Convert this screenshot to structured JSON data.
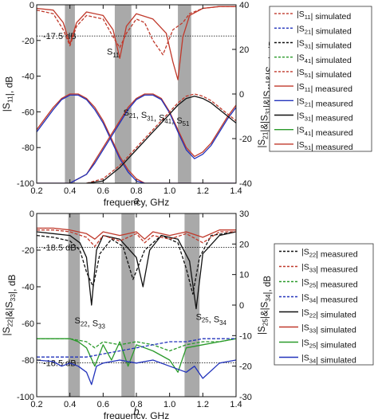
{
  "chart_data": [
    {
      "panel_label": "a",
      "type": "line",
      "xlabel": "frequency, GHz",
      "ylabel_left": "|S11|, dB",
      "ylabel_right": "|S21|&|S31|&|S41|&|S51|, dB",
      "xlim": [
        0.2,
        1.4
      ],
      "ylim_left": [
        -100,
        0
      ],
      "ylim_right": [
        -40,
        40
      ],
      "xticks": [
        "0.2",
        "0.4",
        "0.6",
        "0.8",
        "1.0",
        "1.2",
        "1.4"
      ],
      "yticks_left": [
        "-100",
        "-80",
        "-60",
        "-40",
        "-20",
        "0"
      ],
      "yticks_right": [
        "-40",
        "-20",
        "0",
        "20",
        "40"
      ],
      "shaded_bands": [
        [
          0.37,
          0.43
        ],
        [
          0.67,
          0.77
        ],
        [
          1.05,
          1.13
        ]
      ],
      "reference_lines": [
        {
          "axis": "left",
          "y": -17.5,
          "label": "-17.5 dB"
        }
      ],
      "annotations": [
        {
          "text": "S11",
          "x": 0.66,
          "y": -28
        },
        {
          "text": "S21, S31, S41, S51",
          "x": 0.92,
          "y": -62
        }
      ],
      "legend": {
        "placement": "right",
        "entries": [
          {
            "label": "|S11| simulated",
            "color": "#c0392b",
            "style": "dashed"
          },
          {
            "label": "|S21| simulated",
            "color": "#2233bb",
            "style": "dashed"
          },
          {
            "label": "|S31| simulated",
            "color": "#111111",
            "style": "dashed"
          },
          {
            "label": "|S41| simulated",
            "color": "#2a9a2a",
            "style": "dashed"
          },
          {
            "label": "|S51| simulated",
            "color": "#c0392b",
            "style": "dashed"
          },
          {
            "label": "|S11| measured",
            "color": "#c0392b",
            "style": "solid"
          },
          {
            "label": "|S21| measured",
            "color": "#2233bb",
            "style": "solid"
          },
          {
            "label": "|S31| measured",
            "color": "#111111",
            "style": "solid"
          },
          {
            "label": "|S41| measured",
            "color": "#2a9a2a",
            "style": "solid"
          },
          {
            "label": "|S51| measured",
            "color": "#c0392b",
            "style": "solid"
          }
        ]
      },
      "series": [
        {
          "axis": "left",
          "color": "#c0392b",
          "style": "solid",
          "x": [
            0.2,
            0.3,
            0.36,
            0.4,
            0.44,
            0.5,
            0.6,
            0.66,
            0.7,
            0.74,
            0.8,
            0.9,
            0.98,
            1.02,
            1.05,
            1.08,
            1.12,
            1.2,
            1.3,
            1.4
          ],
          "y": [
            -2,
            -3,
            -10,
            -22,
            -10,
            -4,
            -6,
            -14,
            -30,
            -12,
            -5,
            -8,
            -16,
            -32,
            -42,
            -18,
            -6,
            -2,
            -1,
            -1
          ]
        },
        {
          "axis": "left",
          "color": "#c0392b",
          "style": "dashed",
          "x": [
            0.2,
            0.3,
            0.36,
            0.4,
            0.44,
            0.5,
            0.6,
            0.66,
            0.7,
            0.74,
            0.8,
            0.85,
            0.9,
            0.96,
            1.02,
            1.08,
            1.12,
            1.2,
            1.3,
            1.4
          ],
          "y": [
            -3,
            -5,
            -14,
            -23,
            -12,
            -6,
            -8,
            -18,
            -24,
            -16,
            -8,
            -10,
            -20,
            -28,
            -14,
            -10,
            -5,
            -2,
            -1,
            -1
          ]
        },
        {
          "axis": "right",
          "color": "#c0392b",
          "style": "solid",
          "x": [
            0.2,
            0.25,
            0.3,
            0.35,
            0.4,
            0.45,
            0.5,
            0.55,
            0.6,
            0.65,
            0.7,
            0.75,
            0.8,
            0.85,
            0.9,
            0.95,
            1.0,
            1.05,
            1.1,
            1.15,
            1.2,
            1.25,
            1.3,
            1.35,
            1.4
          ],
          "y": [
            -16,
            -11,
            -6,
            -2,
            0,
            0,
            -2,
            -6,
            -12,
            -20,
            -28,
            -34,
            -38,
            -40,
            -40,
            -40,
            -40,
            -40,
            -40,
            -40,
            -40,
            -40,
            -40,
            -40,
            -40
          ]
        },
        {
          "axis": "right",
          "color": "#2233bb",
          "style": "solid",
          "x": [
            0.2,
            0.25,
            0.3,
            0.35,
            0.4,
            0.45,
            0.5,
            0.55,
            0.6,
            0.65,
            0.7,
            0.75,
            0.8,
            0.85,
            0.9,
            0.95,
            1.0,
            1.05,
            1.1,
            1.15,
            1.2,
            1.25,
            1.3,
            1.35,
            1.4
          ],
          "y": [
            -17,
            -12,
            -7,
            -2.5,
            -0.5,
            -0.5,
            -2.5,
            -7,
            -13,
            -21,
            -29,
            -35,
            -39,
            -40,
            -40,
            -40,
            -40,
            -40,
            -40,
            -40,
            -40,
            -40,
            -40,
            -40,
            -40
          ]
        },
        {
          "axis": "right",
          "color": "#c0392b",
          "style": "solid",
          "x": [
            0.2,
            0.3,
            0.4,
            0.5,
            0.55,
            0.6,
            0.65,
            0.7,
            0.75,
            0.8,
            0.85,
            0.9,
            0.95,
            1.0,
            1.05,
            1.1,
            1.15,
            1.2,
            1.25,
            1.3,
            1.35,
            1.4
          ],
          "y": [
            -40,
            -40,
            -40,
            -36,
            -30,
            -24,
            -18,
            -12,
            -6,
            -2,
            0,
            0,
            -2,
            -8,
            -16,
            -24,
            -28,
            -26,
            -22,
            -16,
            -10,
            -5
          ]
        },
        {
          "axis": "right",
          "color": "#2233bb",
          "style": "solid",
          "x": [
            0.2,
            0.3,
            0.4,
            0.5,
            0.55,
            0.6,
            0.65,
            0.7,
            0.75,
            0.8,
            0.85,
            0.9,
            0.95,
            1.0,
            1.05,
            1.1,
            1.15,
            1.2,
            1.25,
            1.3,
            1.35,
            1.4
          ],
          "y": [
            -40,
            -40,
            -40,
            -36,
            -31,
            -25,
            -19,
            -13,
            -7,
            -2.5,
            -0.5,
            -0.5,
            -2.5,
            -8.5,
            -17,
            -25,
            -29,
            -27,
            -23,
            -17,
            -11,
            -6
          ]
        },
        {
          "axis": "right",
          "color": "#c0392b",
          "style": "dashed",
          "x": [
            0.5,
            0.6,
            0.7,
            0.8,
            0.85,
            0.9,
            0.95,
            1.0,
            1.05,
            1.1,
            1.15,
            1.2,
            1.25,
            1.3,
            1.35,
            1.4
          ],
          "y": [
            -40,
            -38,
            -32,
            -24,
            -20,
            -16,
            -12,
            -8,
            -4,
            -1,
            0,
            -1,
            -3,
            -6,
            -9,
            -12
          ]
        },
        {
          "axis": "right",
          "color": "#111111",
          "style": "solid",
          "x": [
            0.5,
            0.6,
            0.7,
            0.8,
            0.85,
            0.9,
            0.95,
            1.0,
            1.05,
            1.1,
            1.15,
            1.2,
            1.25,
            1.3,
            1.35,
            1.4
          ],
          "y": [
            -40,
            -39,
            -33,
            -25,
            -21,
            -17,
            -13,
            -9,
            -5,
            -2,
            -1,
            -2,
            -4,
            -7,
            -10,
            -13
          ]
        }
      ]
    },
    {
      "panel_label": "b",
      "type": "line",
      "xlabel": "frequency, GHz",
      "ylabel_left": "|S22|&|S33|, dB",
      "ylabel_right": "|S25|&|S34|, dB",
      "xlim": [
        0.2,
        1.4
      ],
      "ylim_left": [
        -100,
        0
      ],
      "ylim_right": [
        -30,
        30
      ],
      "xticks": [
        "0.2",
        "0.4",
        "0.6",
        "0.8",
        "1.0",
        "1.2",
        "1.4"
      ],
      "yticks_left": [
        "-100",
        "-80",
        "-60",
        "-40",
        "-20",
        "0"
      ],
      "yticks_right": [
        "-30",
        "-20",
        "-10",
        "0",
        "10",
        "20",
        "30"
      ],
      "shaded_bands": [
        [
          0.39,
          0.46
        ],
        [
          0.71,
          0.79
        ],
        [
          1.09,
          1.18
        ]
      ],
      "reference_lines": [
        {
          "axis": "left",
          "y": -18.5,
          "label": "-18.5 dB"
        },
        {
          "axis": "left",
          "y": -81.5,
          "label": "-18.5 dB"
        }
      ],
      "annotations": [
        {
          "text": "S22, S33",
          "x": 0.52,
          "y": -60
        },
        {
          "text": "S25, S34",
          "x": 1.25,
          "y": -58
        }
      ],
      "legend": {
        "placement": "right",
        "entries": [
          {
            "label": "|S22| measured",
            "color": "#111111",
            "style": "dashed"
          },
          {
            "label": "|S33| measured",
            "color": "#c0392b",
            "style": "dashed"
          },
          {
            "label": "|S25| measured",
            "color": "#2a9a2a",
            "style": "dashed"
          },
          {
            "label": "|S34| measured",
            "color": "#2233bb",
            "style": "dashed"
          },
          {
            "label": "|S22| simulated",
            "color": "#111111",
            "style": "solid"
          },
          {
            "label": "|S33| simulated",
            "color": "#c0392b",
            "style": "solid"
          },
          {
            "label": "|S25| simulated",
            "color": "#2a9a2a",
            "style": "solid"
          },
          {
            "label": "|S34| simulated",
            "color": "#2233bb",
            "style": "solid"
          }
        ]
      },
      "series": [
        {
          "axis": "left",
          "color": "#111111",
          "style": "solid",
          "x": [
            0.2,
            0.3,
            0.4,
            0.46,
            0.5,
            0.53,
            0.56,
            0.6,
            0.7,
            0.8,
            0.84,
            0.88,
            0.95,
            1.05,
            1.12,
            1.16,
            1.2,
            1.3,
            1.4
          ],
          "y": [
            -10,
            -11,
            -12,
            -16,
            -24,
            -50,
            -20,
            -12,
            -14,
            -24,
            -40,
            -20,
            -12,
            -14,
            -26,
            -52,
            -22,
            -12,
            -10
          ]
        },
        {
          "axis": "left",
          "color": "#111111",
          "style": "dashed",
          "x": [
            0.2,
            0.3,
            0.4,
            0.46,
            0.5,
            0.54,
            0.58,
            0.65,
            0.72,
            0.78,
            0.85,
            0.95,
            1.05,
            1.1,
            1.14,
            1.18,
            1.25,
            1.4
          ],
          "y": [
            -12,
            -13,
            -15,
            -20,
            -32,
            -40,
            -22,
            -14,
            -18,
            -36,
            -20,
            -12,
            -16,
            -30,
            -44,
            -24,
            -12,
            -10
          ]
        },
        {
          "axis": "left",
          "color": "#c0392b",
          "style": "solid",
          "x": [
            0.2,
            0.3,
            0.4,
            0.5,
            0.55,
            0.6,
            0.7,
            0.8,
            0.85,
            0.9,
            1.0,
            1.1,
            1.2,
            1.3,
            1.4
          ],
          "y": [
            -8,
            -8,
            -9,
            -11,
            -14,
            -10,
            -12,
            -10,
            -14,
            -10,
            -12,
            -10,
            -13,
            -9,
            -9
          ]
        },
        {
          "axis": "left",
          "color": "#c0392b",
          "style": "dashed",
          "x": [
            0.2,
            0.3,
            0.4,
            0.5,
            0.55,
            0.6,
            0.7,
            0.8,
            0.85,
            0.9,
            1.0,
            1.1,
            1.2,
            1.3,
            1.4
          ],
          "y": [
            -9,
            -9,
            -10,
            -13,
            -18,
            -12,
            -15,
            -11,
            -16,
            -12,
            -14,
            -11,
            -16,
            -10,
            -10
          ]
        },
        {
          "axis": "right",
          "color": "#2a9a2a",
          "style": "solid",
          "x": [
            0.2,
            0.3,
            0.4,
            0.45,
            0.5,
            0.55,
            0.6,
            0.65,
            0.7,
            0.75,
            0.8,
            0.9,
            1.0,
            1.05,
            1.1,
            1.2,
            1.3,
            1.4
          ],
          "y": [
            -11,
            -11,
            -11,
            -12,
            -14,
            -20,
            -13,
            -18,
            -12,
            -20,
            -13,
            -15,
            -18,
            -22,
            -14,
            -13,
            -12,
            -11
          ]
        },
        {
          "axis": "right",
          "color": "#2a9a2a",
          "style": "dashed",
          "x": [
            0.2,
            0.3,
            0.4,
            0.5,
            0.55,
            0.6,
            0.7,
            0.8,
            0.9,
            1.0,
            1.1,
            1.2,
            1.3,
            1.4
          ],
          "y": [
            -11,
            -11,
            -11,
            -12,
            -14,
            -12,
            -13,
            -12,
            -13,
            -15,
            -13,
            -12,
            -12,
            -11
          ]
        },
        {
          "axis": "right",
          "color": "#2233bb",
          "style": "solid",
          "x": [
            0.2,
            0.3,
            0.35,
            0.4,
            0.45,
            0.5,
            0.53,
            0.56,
            0.6,
            0.7,
            0.8,
            0.9,
            1.0,
            1.1,
            1.15,
            1.2,
            1.3,
            1.4
          ],
          "y": [
            -18,
            -18.5,
            -20,
            -19,
            -20,
            -22,
            -26,
            -20,
            -19,
            -18,
            -19,
            -18,
            -20,
            -22,
            -20,
            -24,
            -19,
            -18
          ]
        },
        {
          "axis": "right",
          "color": "#2233bb",
          "style": "dashed",
          "x": [
            0.2,
            0.3,
            0.4,
            0.5,
            0.6,
            0.7,
            0.8,
            0.9,
            1.0,
            1.1,
            1.2,
            1.3,
            1.4
          ],
          "y": [
            -17,
            -17,
            -17,
            -17,
            -16,
            -15,
            -14,
            -13,
            -12,
            -12,
            -11,
            -11,
            -11
          ]
        }
      ]
    }
  ]
}
